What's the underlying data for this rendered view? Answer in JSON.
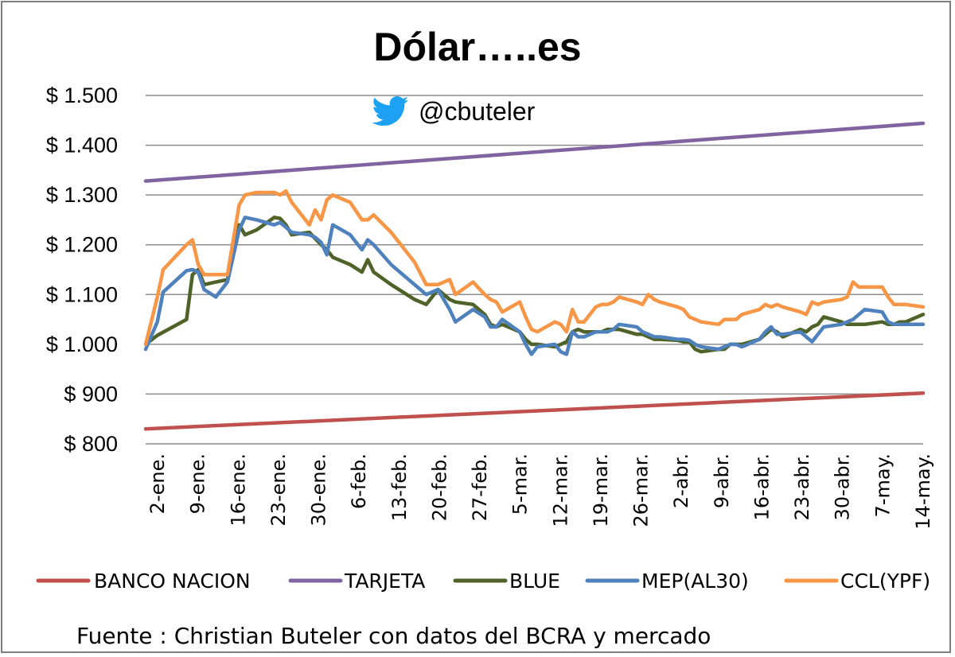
{
  "chart_data": {
    "type": "line",
    "title": "Dólar…..es",
    "subtitle": "@cbuteler",
    "source": "Fuente : Christian Buteler con datos del BCRA y mercado",
    "y_tick_labels": [
      "$ 800",
      "$ 900",
      "$ 1.000",
      "$ 1.100",
      "$ 1.200",
      "$ 1.300",
      "$ 1.400",
      "$ 1.500"
    ],
    "y_ticks": [
      800,
      900,
      1000,
      1100,
      1200,
      1300,
      1400,
      1500
    ],
    "ylim": [
      800,
      1500
    ],
    "grid": true,
    "legend_position": "bottom",
    "x_tick_labels": [
      "2-ene.",
      "9-ene.",
      "16-ene.",
      "23-ene.",
      "30-ene.",
      "6-feb.",
      "13-feb.",
      "20-feb.",
      "27-feb.",
      "5-mar.",
      "12-mar.",
      "19-mar.",
      "26-mar.",
      "2-abr.",
      "9-abr.",
      "16-abr.",
      "23-abr.",
      "30-abr.",
      "7-may.",
      "14-may."
    ],
    "x_range_days": [
      0,
      133
    ],
    "series": [
      {
        "name": "BANCO NACION",
        "color": "#c0504d",
        "x": [
          0,
          133
        ],
        "values": [
          830,
          902
        ]
      },
      {
        "name": "TARJETA",
        "color": "#8064a2",
        "x": [
          0,
          133
        ],
        "values": [
          1328,
          1444
        ]
      },
      {
        "name": "BLUE",
        "color": "#4f6228",
        "x": [
          0,
          2,
          7,
          8,
          9,
          10,
          12,
          14,
          16,
          17,
          19,
          22,
          23,
          24,
          25,
          28,
          30,
          31,
          32,
          35,
          37,
          38,
          39,
          42,
          44,
          46,
          48,
          50,
          52,
          53,
          56,
          58,
          59,
          60,
          61,
          64,
          65,
          66,
          67,
          70,
          71,
          72,
          73,
          74,
          75,
          77,
          78,
          79,
          80,
          81,
          84,
          85,
          86,
          87,
          88,
          91,
          92,
          93,
          94,
          95,
          98,
          99,
          100,
          101,
          102,
          105,
          106,
          107,
          108,
          109,
          112,
          113,
          114,
          115,
          116,
          119,
          120,
          121,
          122,
          123,
          126,
          127,
          128,
          129,
          130,
          133
        ],
        "values": [
          1000,
          1018,
          1050,
          1140,
          1150,
          1120,
          1125,
          1130,
          1240,
          1220,
          1230,
          1255,
          1253,
          1240,
          1220,
          1225,
          1200,
          1190,
          1175,
          1160,
          1145,
          1170,
          1145,
          1120,
          1105,
          1090,
          1080,
          1110,
          1090,
          1085,
          1080,
          1060,
          1040,
          1035,
          1040,
          1025,
          1010,
          1000,
          1000,
          995,
          1000,
          1005,
          1025,
          1030,
          1025,
          1025,
          1025,
          1030,
          1030,
          1030,
          1020,
          1020,
          1015,
          1010,
          1010,
          1008,
          1005,
          1005,
          990,
          985,
          990,
          990,
          1000,
          1000,
          1000,
          1010,
          1020,
          1030,
          1025,
          1015,
          1030,
          1025,
          1035,
          1040,
          1055,
          1045,
          1040,
          1040,
          1040,
          1040,
          1045,
          1040,
          1040,
          1045,
          1045,
          1060
        ]
      },
      {
        "name": "MEP(AL30)",
        "color": "#4f81bd",
        "x": [
          0,
          2,
          3,
          7,
          8,
          9,
          10,
          12,
          14,
          16,
          17,
          19,
          22,
          23,
          24,
          25,
          28,
          29,
          30,
          31,
          32,
          35,
          37,
          38,
          39,
          42,
          44,
          46,
          48,
          50,
          52,
          53,
          56,
          58,
          59,
          60,
          61,
          64,
          65,
          66,
          67,
          70,
          71,
          72,
          73,
          74,
          75,
          77,
          78,
          79,
          80,
          81,
          84,
          85,
          86,
          87,
          88,
          91,
          92,
          93,
          94,
          95,
          98,
          99,
          100,
          101,
          102,
          105,
          106,
          107,
          108,
          109,
          112,
          113,
          114,
          115,
          116,
          119,
          120,
          121,
          122,
          123,
          126,
          127,
          128,
          129,
          130,
          133
        ],
        "values": [
          990,
          1045,
          1105,
          1148,
          1150,
          1145,
          1110,
          1095,
          1125,
          1230,
          1255,
          1250,
          1240,
          1245,
          1235,
          1225,
          1220,
          1215,
          1205,
          1180,
          1240,
          1220,
          1190,
          1210,
          1200,
          1160,
          1140,
          1120,
          1100,
          1110,
          1070,
          1045,
          1070,
          1055,
          1035,
          1035,
          1050,
          1025,
          1000,
          980,
          995,
          1000,
          985,
          980,
          1025,
          1015,
          1015,
          1025,
          1025,
          1025,
          1030,
          1040,
          1035,
          1025,
          1020,
          1015,
          1015,
          1010,
          1010,
          1008,
          1000,
          995,
          990,
          995,
          1000,
          1000,
          995,
          1010,
          1025,
          1035,
          1020,
          1020,
          1025,
          1015,
          1005,
          1020,
          1035,
          1040,
          1045,
          1050,
          1060,
          1070,
          1065,
          1045,
          1040,
          1040,
          1040,
          1040
        ]
      },
      {
        "name": "CCL(YPF)",
        "color": "#f79646",
        "x": [
          0,
          2,
          3,
          7,
          8,
          9,
          10,
          12,
          14,
          16,
          17,
          19,
          22,
          23,
          24,
          25,
          28,
          29,
          30,
          31,
          32,
          35,
          37,
          38,
          39,
          42,
          44,
          46,
          48,
          50,
          52,
          53,
          56,
          58,
          59,
          60,
          61,
          64,
          65,
          66,
          67,
          70,
          71,
          72,
          73,
          74,
          75,
          77,
          78,
          79,
          80,
          81,
          84,
          85,
          86,
          87,
          88,
          91,
          92,
          93,
          94,
          95,
          98,
          99,
          100,
          101,
          102,
          105,
          106,
          107,
          108,
          109,
          112,
          113,
          114,
          115,
          116,
          119,
          120,
          121,
          122,
          123,
          126,
          127,
          128,
          129,
          130,
          133
        ],
        "values": [
          1000,
          1095,
          1150,
          1200,
          1210,
          1160,
          1140,
          1140,
          1140,
          1280,
          1300,
          1305,
          1305,
          1300,
          1308,
          1285,
          1240,
          1270,
          1250,
          1290,
          1300,
          1285,
          1250,
          1250,
          1260,
          1225,
          1195,
          1165,
          1120,
          1120,
          1130,
          1100,
          1125,
          1100,
          1090,
          1085,
          1065,
          1085,
          1055,
          1030,
          1025,
          1045,
          1040,
          1025,
          1070,
          1045,
          1045,
          1075,
          1080,
          1080,
          1085,
          1095,
          1085,
          1080,
          1100,
          1090,
          1085,
          1075,
          1070,
          1055,
          1050,
          1045,
          1040,
          1050,
          1050,
          1050,
          1060,
          1070,
          1080,
          1075,
          1080,
          1075,
          1065,
          1060,
          1085,
          1080,
          1085,
          1090,
          1095,
          1125,
          1115,
          1115,
          1115,
          1095,
          1080,
          1080,
          1080,
          1075
        ]
      }
    ]
  }
}
